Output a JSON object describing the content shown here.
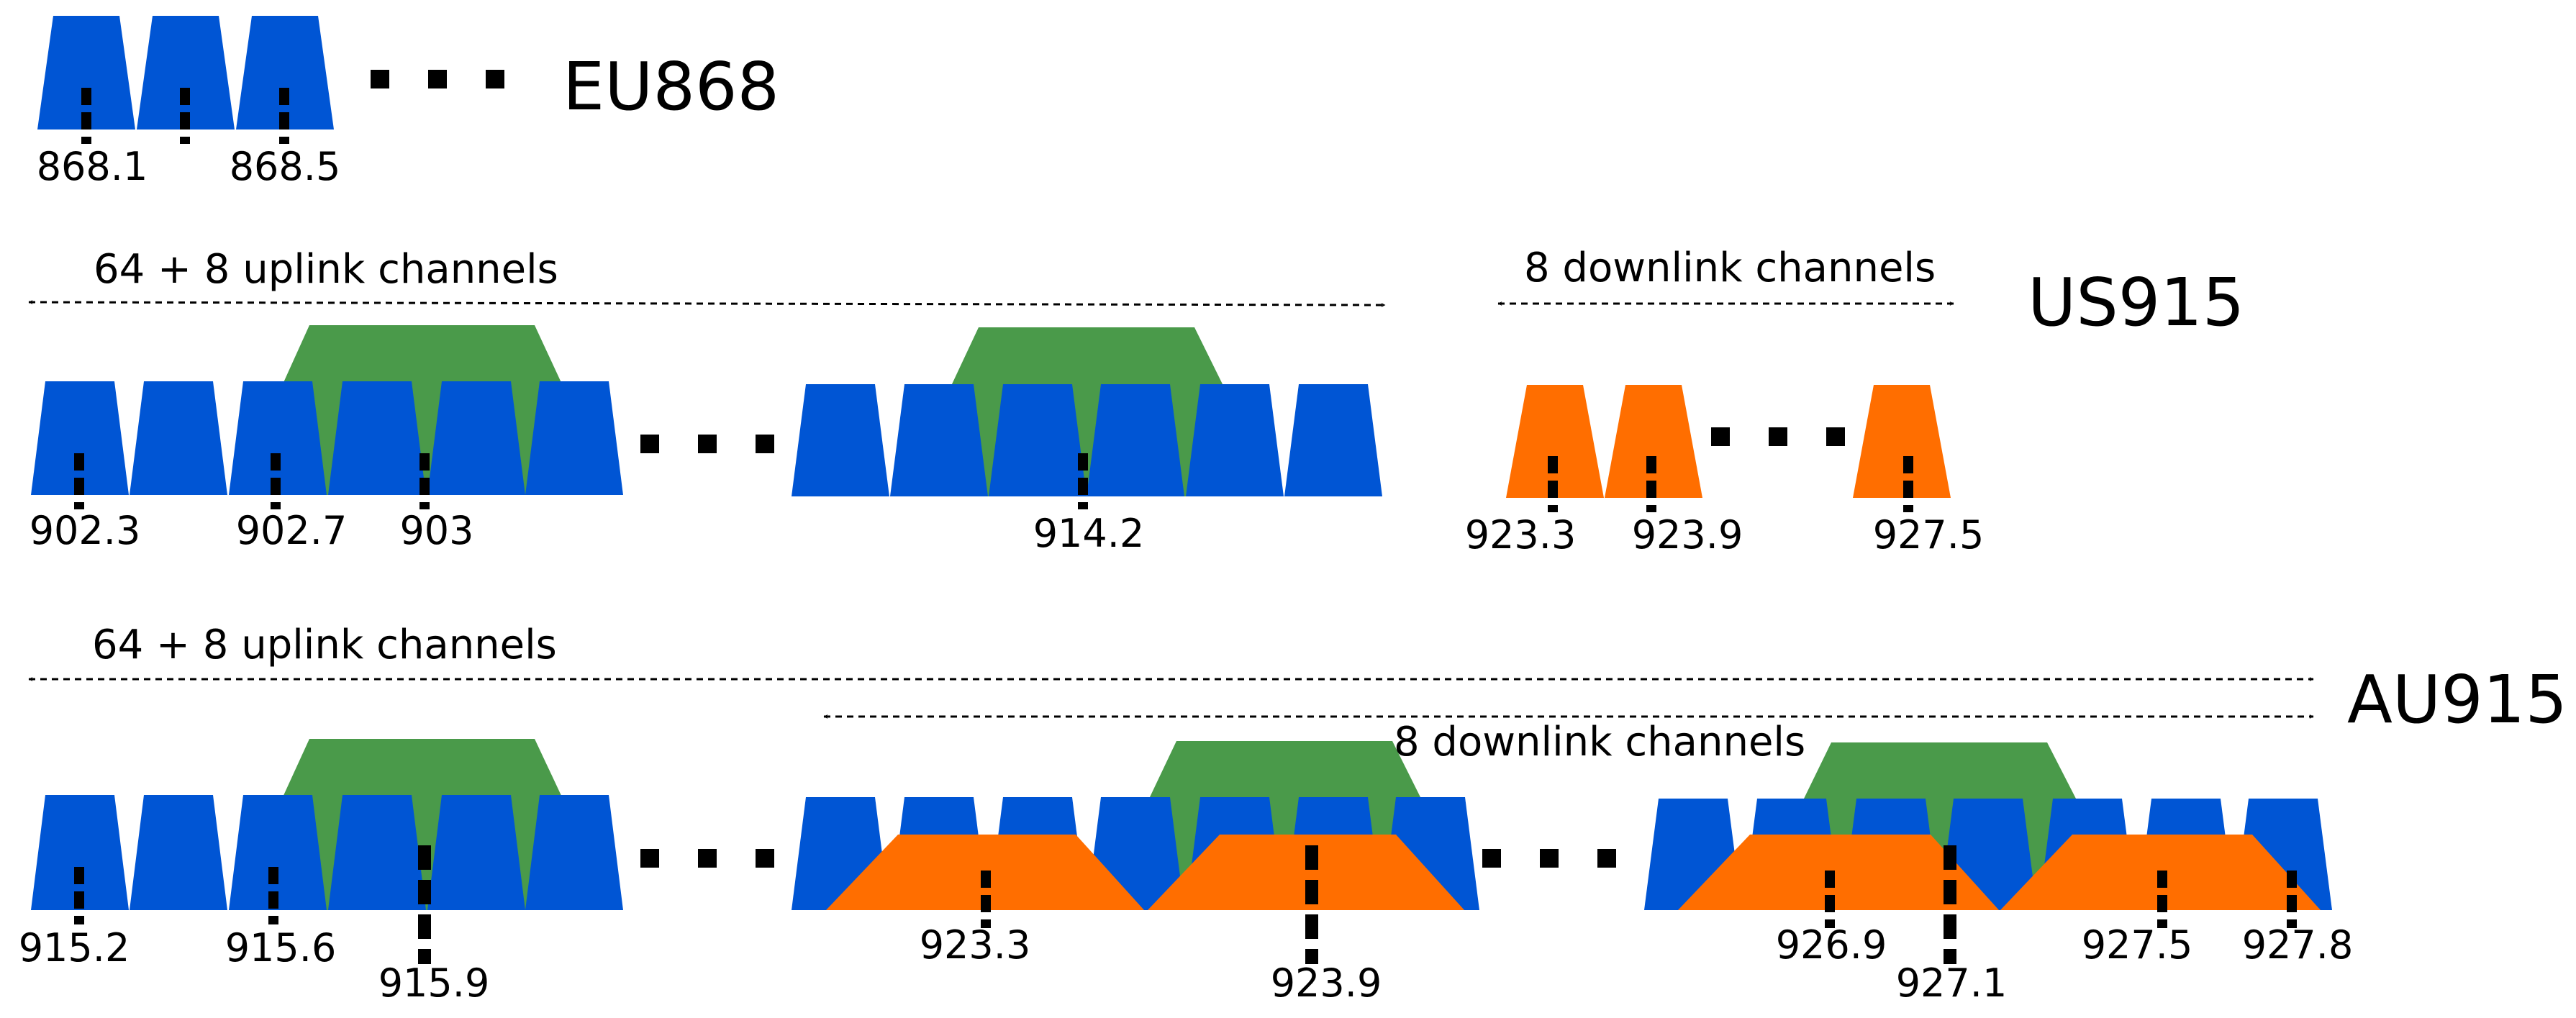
{
  "colors": {
    "uplink_125khz": "#0055d4",
    "uplink_500khz": "#4a9a4a",
    "downlink": "#ff6e00",
    "marker": "#000000"
  },
  "eu868": {
    "band_label": "EU868",
    "freq_labels": [
      "868.1",
      "868.5"
    ]
  },
  "us915": {
    "band_label": "US915",
    "uplink_text": "64 + 8 uplink channels",
    "downlink_text": "8 downlink channels",
    "uplink_freq_labels": [
      "902.3",
      "902.7",
      "903",
      "914.2"
    ],
    "downlink_freq_labels": [
      "923.3",
      "923.9",
      "927.5"
    ]
  },
  "au915": {
    "band_label": "AU915",
    "uplink_text": "64 + 8 uplink channels",
    "downlink_text": "8 downlink channels",
    "freq_labels": [
      "915.2",
      "915.6",
      "915.9",
      "923.3",
      "923.9",
      "926.9",
      "927.1",
      "927.5",
      "927.8"
    ]
  }
}
